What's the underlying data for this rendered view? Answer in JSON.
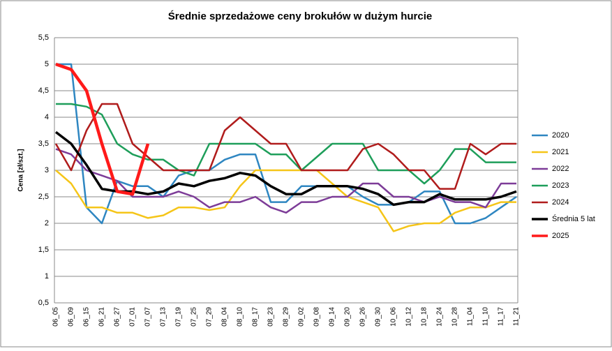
{
  "chart_data": {
    "type": "line",
    "title": "Średnie sprzedażowe ceny brokułów w dużym hurcie",
    "y_label": "Cena [zł/szt.]",
    "categories": [
      "06_05",
      "06_09",
      "06_15",
      "06_21",
      "06_27",
      "07_01",
      "07_07",
      "07_13",
      "07_19",
      "07_25",
      "07_29",
      "08_04",
      "08_10",
      "08_17",
      "08_23",
      "08_29",
      "09_02",
      "09_08",
      "09_14",
      "09_20",
      "09_26",
      "09_30",
      "10_06",
      "10_12",
      "10_18",
      "10_24",
      "10_28",
      "11_04",
      "11_10",
      "11_17",
      "11_21"
    ],
    "ylim": [
      0.5,
      5.5
    ],
    "yticks": [
      {
        "value": 0.5,
        "label": "0,5"
      },
      1,
      {
        "value": 1.5,
        "label": "1,5"
      },
      2,
      {
        "value": 2.5,
        "label": "2,5"
      },
      3,
      {
        "value": 3.5,
        "label": "3,5"
      },
      4,
      {
        "value": 4.5,
        "label": "4,5"
      },
      5,
      {
        "value": 5.5,
        "label": "5,5"
      }
    ],
    "grid": true,
    "legend": "right",
    "series": [
      {
        "name": "2020",
        "color": "#2e86c1",
        "width": 2.5,
        "values": [
          5,
          5,
          2.3,
          2,
          2.8,
          2.7,
          2.7,
          2.5,
          2.9,
          3,
          3,
          3.2,
          3.3,
          3.3,
          2.4,
          2.4,
          2.7,
          2.7,
          2.7,
          2.7,
          2.5,
          2.35,
          2.35,
          2.4,
          2.6,
          2.6,
          2,
          2,
          2.1,
          2.3,
          2.5
        ]
      },
      {
        "name": "2021",
        "color": "#f5c518",
        "width": 2.5,
        "values": [
          3,
          2.75,
          2.3,
          2.3,
          2.2,
          2.2,
          2.1,
          2.15,
          2.3,
          2.3,
          2.25,
          2.3,
          2.7,
          3,
          3,
          3,
          3,
          3,
          2.75,
          2.5,
          2.4,
          2.3,
          1.85,
          1.95,
          2,
          2,
          2.2,
          2.3,
          2.3,
          2.4,
          2.4
        ]
      },
      {
        "name": "2022",
        "color": "#7d3c98",
        "width": 2.5,
        "values": [
          3.4,
          3.3,
          3,
          2.9,
          2.8,
          2.5,
          2.5,
          2.5,
          2.6,
          2.5,
          2.3,
          2.4,
          2.4,
          2.5,
          2.3,
          2.2,
          2.4,
          2.4,
          2.5,
          2.5,
          2.75,
          2.75,
          2.5,
          2.5,
          2.4,
          2.5,
          2.4,
          2.4,
          2.3,
          2.75,
          2.75
        ]
      },
      {
        "name": "2023",
        "color": "#1e9e5a",
        "width": 2.5,
        "values": [
          4.25,
          4.25,
          4.2,
          4.05,
          3.5,
          3.3,
          3.2,
          3.2,
          3,
          2.9,
          3.5,
          3.5,
          3.5,
          3.5,
          3.3,
          3.3,
          3,
          3.25,
          3.5,
          3.5,
          3.5,
          3,
          3,
          3,
          2.75,
          3,
          3.4,
          3.4,
          3.15,
          3.15,
          3.15
        ]
      },
      {
        "name": "2024",
        "color": "#b01c1c",
        "width": 2.5,
        "values": [
          3.5,
          3,
          3.75,
          4.25,
          4.25,
          3.5,
          3.25,
          3,
          3,
          3,
          3,
          3.75,
          4,
          3.75,
          3.5,
          3.5,
          3,
          3,
          3,
          3,
          3.4,
          3.5,
          3.3,
          3,
          3,
          2.65,
          2.65,
          3.5,
          3.3,
          3.5,
          3.5
        ]
      },
      {
        "name": "Średnia 5 lat",
        "color": "#000000",
        "width": 3.5,
        "values": [
          3.72,
          3.5,
          3.1,
          2.65,
          2.6,
          2.6,
          2.55,
          2.6,
          2.75,
          2.7,
          2.8,
          2.85,
          2.95,
          2.9,
          2.7,
          2.55,
          2.55,
          2.7,
          2.7,
          2.7,
          2.65,
          2.55,
          2.35,
          2.4,
          2.4,
          2.55,
          2.45,
          2.45,
          2.45,
          2.5,
          2.6
        ]
      },
      {
        "name": "2025",
        "color": "#ff1a1a",
        "width": 4.5,
        "values": [
          5,
          4.9,
          4.5,
          3.5,
          2.6,
          2.55,
          3.5,
          null,
          null,
          null,
          null,
          null,
          null,
          null,
          null,
          null,
          null,
          null,
          null,
          null,
          null,
          null,
          null,
          null,
          null,
          null,
          null,
          null,
          null,
          null,
          null
        ]
      }
    ]
  }
}
